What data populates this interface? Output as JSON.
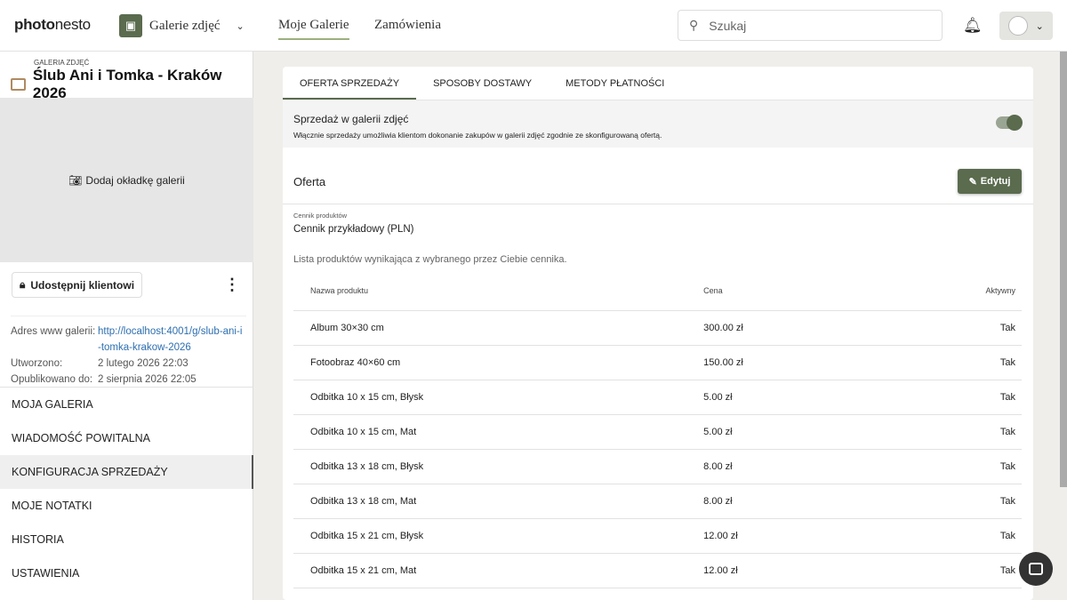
{
  "header": {
    "logo_a": "photo",
    "logo_b": "nesto",
    "app": "Galerie zdjęć",
    "nav": [
      "Moje Galerie",
      "Zamówienia"
    ],
    "search_placeholder": "Szukaj"
  },
  "sidebar": {
    "small": "GALERIA ZDJĘĆ",
    "title": "Ślub Ani i Tomka - Kraków 2026",
    "cover": "Dodaj okładkę galerii",
    "share": "Udostępnij klientowi",
    "meta": {
      "url_label": "Adres www galerii:",
      "url": "http://localhost:4001/g/slub-ani-i-tomka-krakow-2026",
      "created_label": "Utworzono:",
      "created": "2 lutego 2026 22:03",
      "pub_label": "Opublikowano do:",
      "pub": "2 sierpnia 2026 22:05"
    },
    "menu": [
      "Moja galeria",
      "Wiadomość powitalna",
      "Konfiguracja sprzedaży",
      "Moje notatki",
      "Historia",
      "Ustawienia"
    ]
  },
  "main": {
    "tabs": [
      "OFERTA SPRZEDAŻY",
      "SPOSOBY DOSTAWY",
      "METODY PŁATNOŚCI"
    ],
    "sale_title": "Sprzedaż w galerii zdjęć",
    "sale_desc": "Włącznie sprzedaży umożliwia klientom dokonanie zakupów w galerii zdjęć zgodnie ze skonfigurowaną ofertą.",
    "sale_enabled": true,
    "offer_title": "Oferta",
    "edit": "Edytuj",
    "pricelist_label": "Cennik produktów",
    "pricelist": "Cennik przykładowy (PLN)",
    "note": "Lista produktów wynikająca z wybranego przez Ciebie cennika.",
    "columns": [
      "Nazwa produktu",
      "Cena",
      "Aktywny"
    ],
    "rows": [
      [
        "Album 30×30 cm",
        "300.00 zł",
        "Tak"
      ],
      [
        "Fotoobraz 40×60 cm",
        "150.00 zł",
        "Tak"
      ],
      [
        "Odbitka 10 x 15 cm, Błysk",
        "5.00 zł",
        "Tak"
      ],
      [
        "Odbitka 10 x 15 cm, Mat",
        "5.00 zł",
        "Tak"
      ],
      [
        "Odbitka 13 x 18 cm, Błysk",
        "8.00 zł",
        "Tak"
      ],
      [
        "Odbitka 13 x 18 cm, Mat",
        "8.00 zł",
        "Tak"
      ],
      [
        "Odbitka 15 x 21 cm, Błysk",
        "12.00 zł",
        "Tak"
      ],
      [
        "Odbitka 15 x 21 cm, Mat",
        "12.00 zł",
        "Tak"
      ]
    ]
  }
}
